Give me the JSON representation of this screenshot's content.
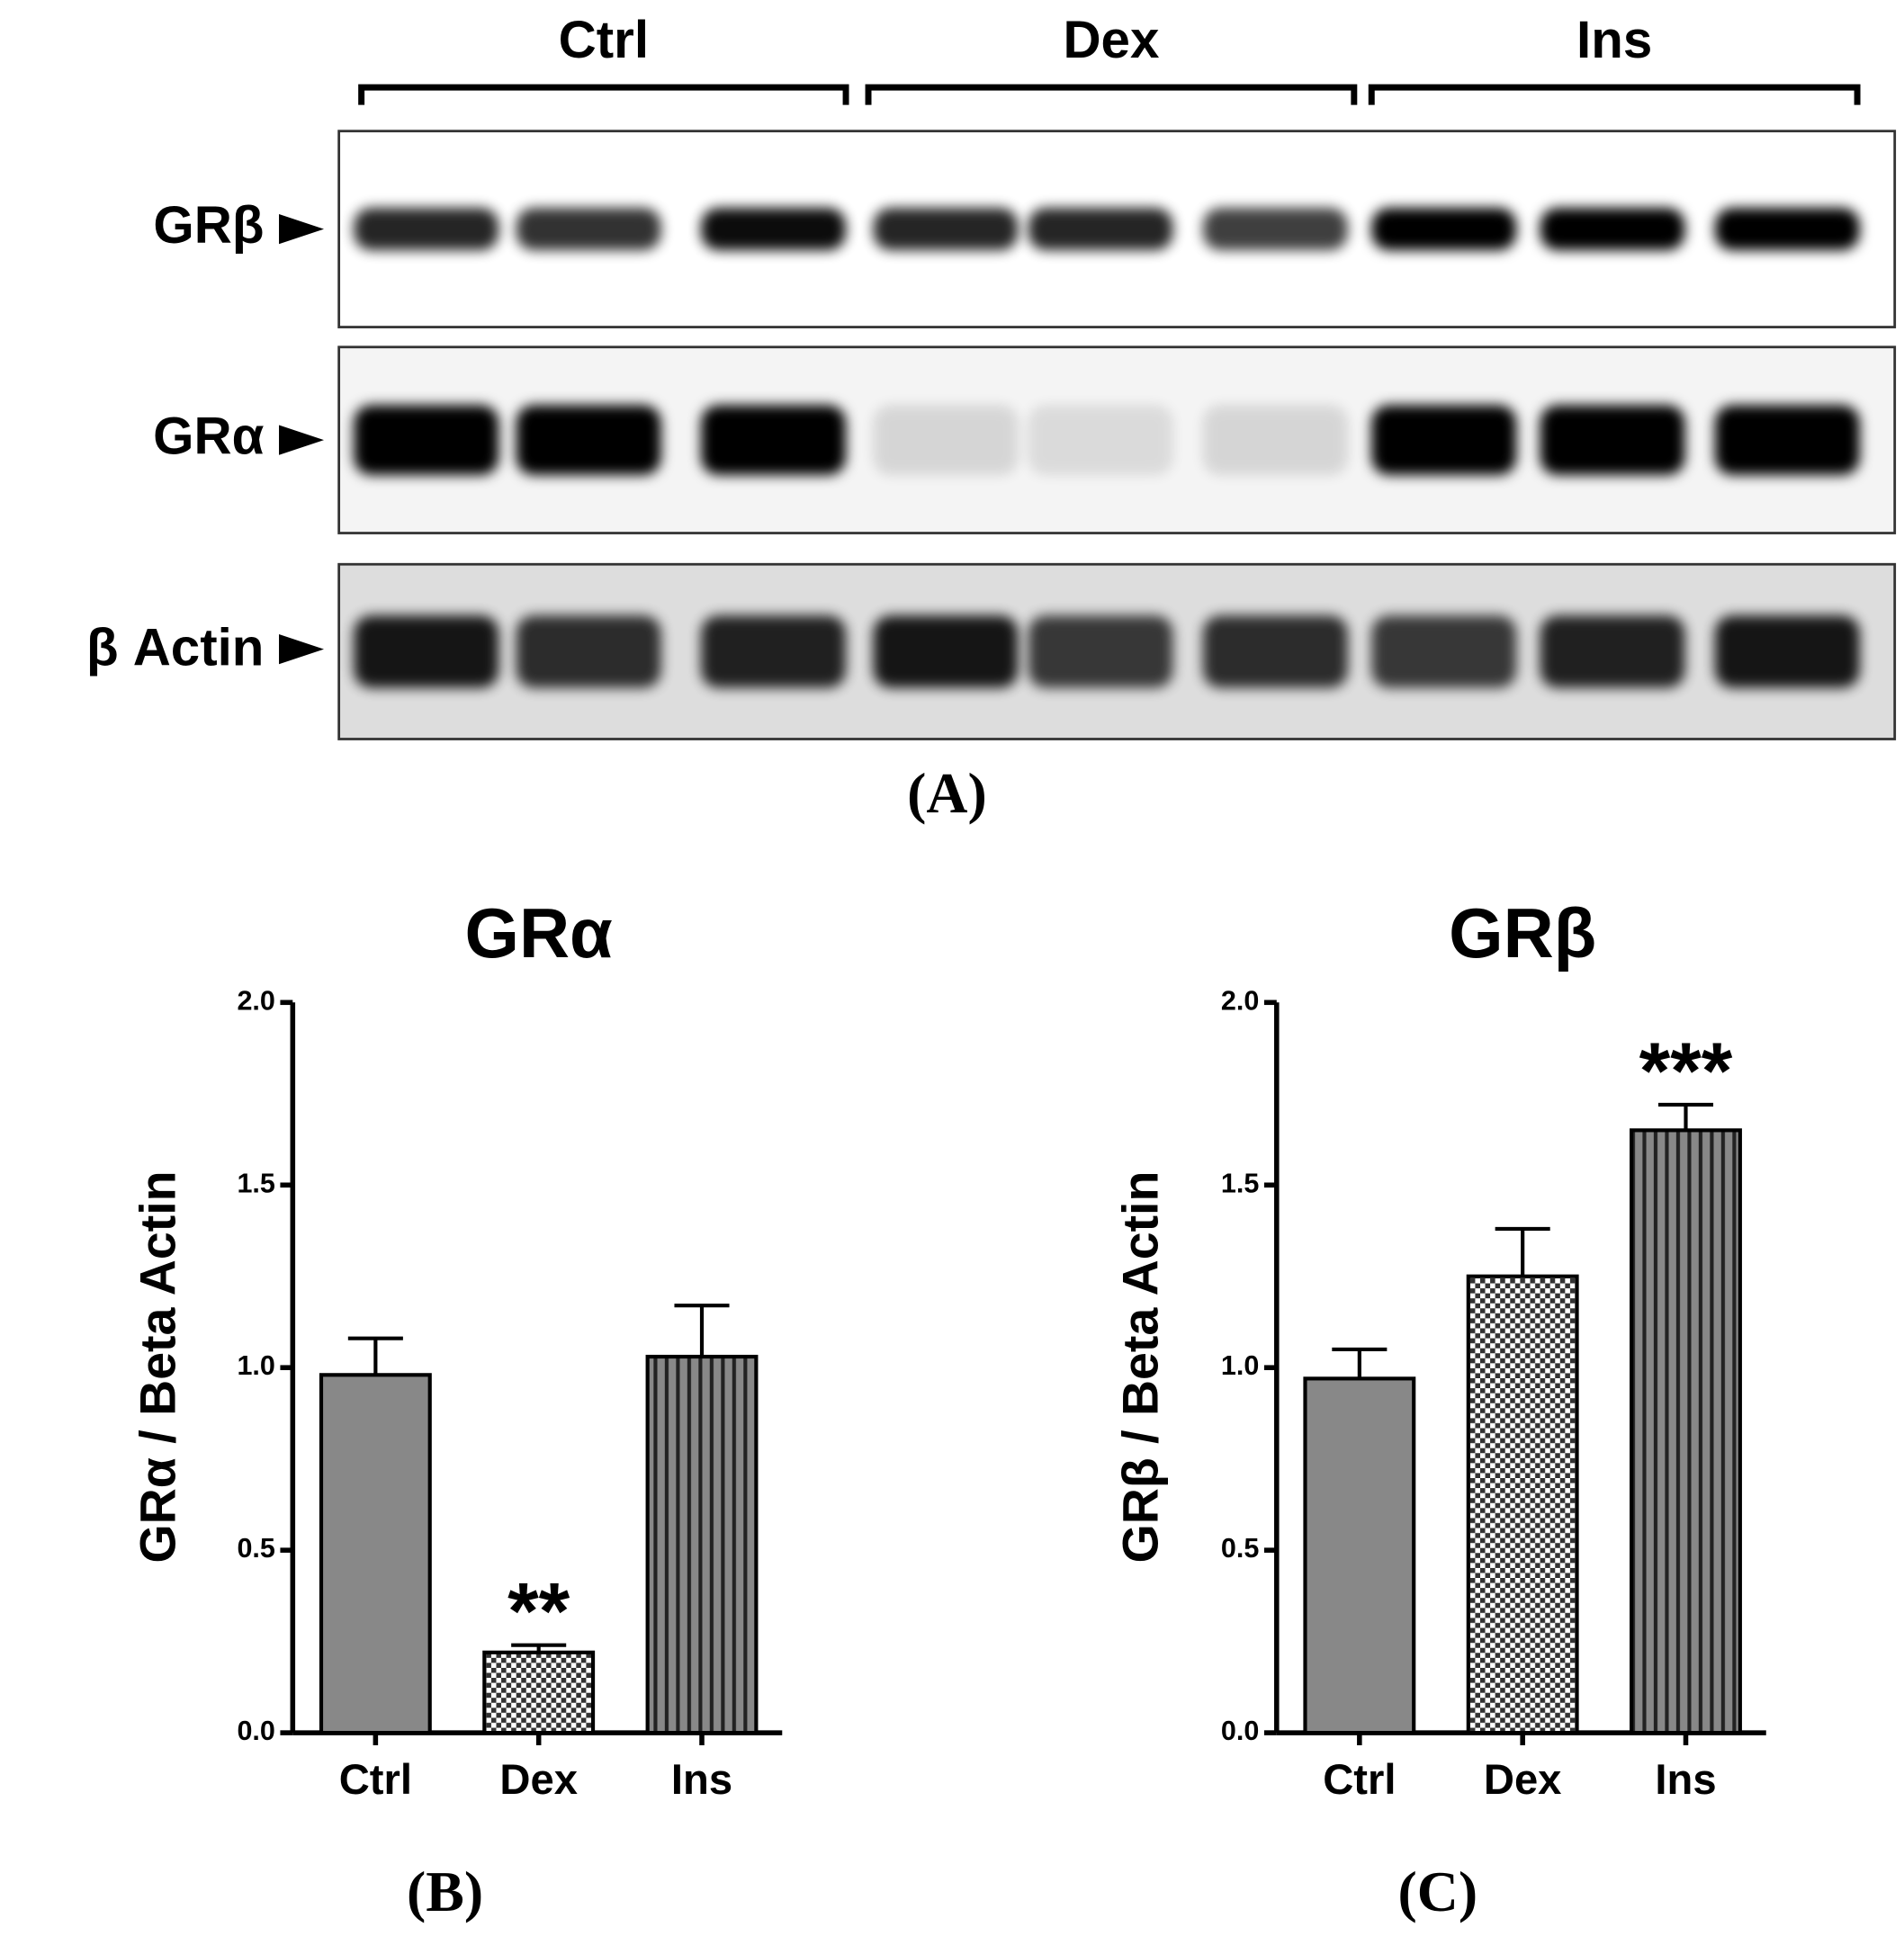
{
  "blot": {
    "groups": [
      "Ctrl",
      "Dex",
      "Ins"
    ],
    "rows": [
      "GRβ",
      "GRα",
      "β Actin"
    ],
    "panel_label": "(A)"
  },
  "chart_data": [
    {
      "type": "bar",
      "title": "GRα",
      "y_label": "GRα / Beta Actin",
      "panel_label": "(B)",
      "categories": [
        "Ctrl",
        "Dex",
        "Ins"
      ],
      "values": [
        0.98,
        0.22,
        1.03
      ],
      "errors": [
        0.1,
        0.02,
        0.14
      ],
      "annotations": [
        null,
        "**",
        null
      ],
      "patterns": [
        "solid",
        "checker",
        "stripes"
      ],
      "color": "#888888",
      "ylim": [
        0,
        2
      ],
      "yticks": [
        {
          "value": 0,
          "label": "0.0"
        },
        0.5,
        {
          "value": 1,
          "label": "1.0"
        },
        1.5,
        {
          "value": 2,
          "label": "2.0"
        }
      ]
    },
    {
      "type": "bar",
      "title": "GRβ",
      "y_label": "GRβ / Beta Actin",
      "panel_label": "(C)",
      "categories": [
        "Ctrl",
        "Dex",
        "Ins"
      ],
      "values": [
        0.97,
        1.25,
        1.65
      ],
      "errors": [
        0.08,
        0.13,
        0.07
      ],
      "annotations": [
        null,
        null,
        "***"
      ],
      "patterns": [
        "solid",
        "checker",
        "stripes"
      ],
      "color": "#888888",
      "ylim": [
        0,
        2
      ],
      "yticks": [
        {
          "value": 0,
          "label": "0.0"
        },
        0.5,
        {
          "value": 1,
          "label": "1.0"
        },
        1.5,
        {
          "value": 2,
          "label": "2.0"
        }
      ]
    }
  ]
}
